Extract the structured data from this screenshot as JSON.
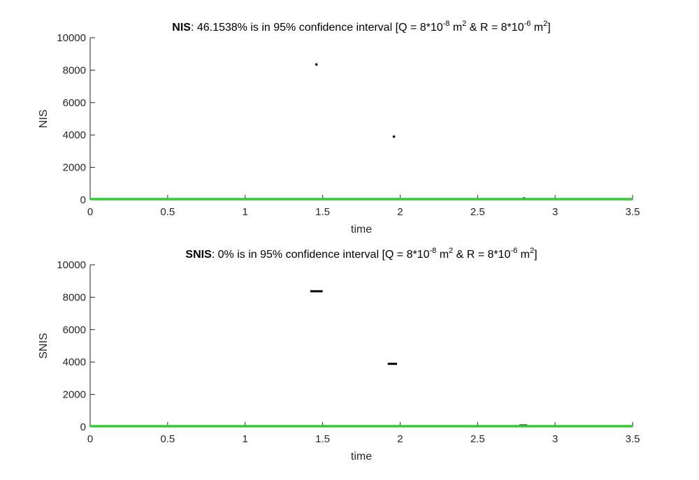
{
  "figure": {
    "background": "#ffffff",
    "axis_color": "#262626",
    "marker_color": "#000000",
    "bound_color": "#33cc33"
  },
  "chart_data": [
    {
      "type": "scatter",
      "title": {
        "bold": "NIS",
        "text": ": 46.1538% is in 95% confidence interval  [Q = 8*10",
        "exp_q": "-8",
        "unit_q": " m",
        "sq1": "2",
        "mid": " & R = 8*10",
        "exp_r": "-6",
        "unit_r": " m",
        "sq2": "2",
        "end": "]"
      },
      "xlabel": "time",
      "ylabel": "NIS",
      "xlim": [
        0,
        3.5
      ],
      "ylim": [
        0,
        10000
      ],
      "xticks": [
        "0",
        "0.5",
        "1",
        "1.5",
        "2",
        "2.5",
        "3",
        "3.5"
      ],
      "yticks": [
        "0",
        "2000",
        "4000",
        "6000",
        "8000",
        "10000"
      ],
      "grid": false,
      "series": [
        {
          "role": "nis-samples",
          "marker": "dot",
          "x": [
            1.46,
            1.96,
            2.8
          ],
          "y": [
            8350,
            3900,
            60
          ]
        },
        {
          "role": "lower-bound",
          "style": "dashed",
          "x": [
            0,
            3.5
          ],
          "y": [
            0.05,
            0.05
          ]
        },
        {
          "role": "upper-bound",
          "style": "dashed",
          "x": [
            0,
            3.5
          ],
          "y": [
            5.0,
            5.0
          ]
        }
      ]
    },
    {
      "type": "scatter",
      "title": {
        "bold": "SNIS",
        "text": ": 0% is in 95% confidence interval  [Q = 8*10",
        "exp_q": "-8",
        "unit_q": " m",
        "sq1": "2",
        "mid": " & R = 8*10",
        "exp_r": "-6",
        "unit_r": " m",
        "sq2": "2",
        "end": "]"
      },
      "xlabel": "time",
      "ylabel": "SNIS",
      "xlim": [
        0,
        3.5
      ],
      "ylim": [
        0,
        10000
      ],
      "xticks": [
        "0",
        "0.5",
        "1",
        "1.5",
        "2",
        "2.5",
        "3",
        "3.5"
      ],
      "yticks": [
        "0",
        "2000",
        "4000",
        "6000",
        "8000",
        "10000"
      ],
      "grid": false,
      "series": [
        {
          "role": "snis-samples",
          "marker": "horizontal-segment",
          "segments": [
            {
              "x": [
                1.42,
                1.5
              ],
              "y": 8370
            },
            {
              "x": [
                1.92,
                1.98
              ],
              "y": 3890
            },
            {
              "x": [
                2.77,
                2.82
              ],
              "y": 60
            }
          ]
        },
        {
          "role": "lower-bound",
          "style": "dashed",
          "x": [
            0,
            3.5
          ],
          "y": [
            0.05,
            0.05
          ]
        },
        {
          "role": "upper-bound",
          "style": "dashed",
          "x": [
            0,
            3.5
          ],
          "y": [
            5.0,
            5.0
          ]
        }
      ]
    }
  ]
}
